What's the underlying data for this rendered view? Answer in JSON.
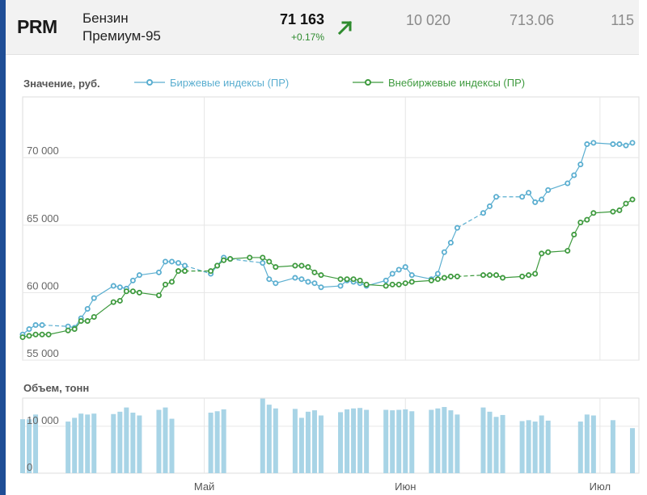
{
  "header": {
    "ticker": "PRM",
    "name_line1": "Бензин",
    "name_line2": "Премиум-95",
    "price": "71 163",
    "change": "+0.17%",
    "trend_icon": "arrow-up-right-icon",
    "value1": "10 020",
    "value2": "713.06",
    "value3": "115"
  },
  "colors": {
    "accent": "#1f4e96",
    "exchange": "#5aaed0",
    "otc": "#3e9a3e",
    "volume": "#a8d4e6",
    "up": "#2e8b2e"
  },
  "chart_data": [
    {
      "type": "line",
      "ylabel": "Значение, руб.",
      "ylim": [
        55000,
        74500
      ],
      "yticks": [
        55000,
        60000,
        65000,
        70000
      ],
      "ytick_labels": [
        "55 000",
        "60 000",
        "65 000",
        "70 000"
      ],
      "xlim": [
        "2023-04-03",
        "2023-07-07"
      ],
      "xticks": [
        "2023-05-01",
        "2023-06-01",
        "2023-07-01"
      ],
      "xtick_labels": [
        "Май",
        "Июн",
        "Июл"
      ],
      "grid": true,
      "legend_position": "top",
      "series": [
        {
          "name": "Биржевые индексы (ПР)",
          "x": [
            "2023-04-03",
            "2023-04-04",
            "2023-04-05",
            "2023-04-06",
            "2023-04-10",
            "2023-04-11",
            "2023-04-12",
            "2023-04-13",
            "2023-04-14",
            "2023-04-17",
            "2023-04-18",
            "2023-04-19",
            "2023-04-20",
            "2023-04-21",
            "2023-04-24",
            "2023-04-25",
            "2023-04-26",
            "2023-04-27",
            "2023-04-28",
            "2023-05-02",
            "2023-05-03",
            "2023-05-04",
            "2023-05-05",
            "2023-05-10",
            "2023-05-11",
            "2023-05-12",
            "2023-05-15",
            "2023-05-16",
            "2023-05-17",
            "2023-05-18",
            "2023-05-19",
            "2023-05-22",
            "2023-05-23",
            "2023-05-24",
            "2023-05-25",
            "2023-05-26",
            "2023-05-29",
            "2023-05-30",
            "2023-05-31",
            "2023-06-01",
            "2023-06-02",
            "2023-06-05",
            "2023-06-06",
            "2023-06-07",
            "2023-06-08",
            "2023-06-09",
            "2023-06-13",
            "2023-06-14",
            "2023-06-15",
            "2023-06-19",
            "2023-06-20",
            "2023-06-21",
            "2023-06-22",
            "2023-06-23",
            "2023-06-26",
            "2023-06-27",
            "2023-06-28",
            "2023-06-29",
            "2023-06-30",
            "2023-07-03",
            "2023-07-04",
            "2023-07-05",
            "2023-07-06"
          ],
          "values": [
            56900,
            57300,
            57600,
            57600,
            57500,
            57400,
            58100,
            58800,
            59600,
            60500,
            60400,
            60300,
            60900,
            61300,
            61500,
            62300,
            62300,
            62200,
            62000,
            61400,
            62000,
            62600,
            62500,
            62200,
            61000,
            60700,
            61100,
            61000,
            60800,
            60700,
            60400,
            60500,
            60900,
            60800,
            60700,
            60500,
            60900,
            61400,
            61700,
            61900,
            61300,
            61000,
            61400,
            63000,
            63700,
            64800,
            65900,
            66400,
            67100,
            67100,
            67400,
            66700,
            66900,
            67600,
            68100,
            68700,
            69500,
            71000,
            71100,
            71000,
            71000,
            70900,
            71100
          ]
        },
        {
          "name": "Внебиржевые индексы (ПР)",
          "x": [
            "2023-04-03",
            "2023-04-04",
            "2023-04-05",
            "2023-04-06",
            "2023-04-07",
            "2023-04-10",
            "2023-04-11",
            "2023-04-12",
            "2023-04-13",
            "2023-04-14",
            "2023-04-17",
            "2023-04-18",
            "2023-04-19",
            "2023-04-20",
            "2023-04-21",
            "2023-04-24",
            "2023-04-25",
            "2023-04-26",
            "2023-04-27",
            "2023-04-28",
            "2023-05-02",
            "2023-05-03",
            "2023-05-04",
            "2023-05-05",
            "2023-05-08",
            "2023-05-10",
            "2023-05-11",
            "2023-05-12",
            "2023-05-15",
            "2023-05-16",
            "2023-05-17",
            "2023-05-18",
            "2023-05-19",
            "2023-05-22",
            "2023-05-23",
            "2023-05-24",
            "2023-05-25",
            "2023-05-26",
            "2023-05-29",
            "2023-05-30",
            "2023-05-31",
            "2023-06-01",
            "2023-06-02",
            "2023-06-05",
            "2023-06-06",
            "2023-06-07",
            "2023-06-08",
            "2023-06-09",
            "2023-06-13",
            "2023-06-14",
            "2023-06-15",
            "2023-06-16",
            "2023-06-19",
            "2023-06-20",
            "2023-06-21",
            "2023-06-22",
            "2023-06-23",
            "2023-06-26",
            "2023-06-27",
            "2023-06-28",
            "2023-06-29",
            "2023-06-30",
            "2023-07-03",
            "2023-07-04",
            "2023-07-05",
            "2023-07-06"
          ],
          "values": [
            56700,
            56800,
            56900,
            56900,
            56900,
            57200,
            57300,
            57900,
            57900,
            58200,
            59300,
            59400,
            60100,
            60100,
            60000,
            59800,
            60600,
            60800,
            61600,
            61600,
            61600,
            62000,
            62400,
            62500,
            62600,
            62600,
            62300,
            61900,
            62000,
            62000,
            61900,
            61500,
            61300,
            61000,
            61000,
            61000,
            60900,
            60600,
            60500,
            60600,
            60600,
            60700,
            60800,
            60900,
            61000,
            61100,
            61200,
            61200,
            61300,
            61300,
            61300,
            61100,
            61200,
            61300,
            61400,
            62900,
            63000,
            63100,
            64300,
            65200,
            65400,
            65900,
            66000,
            66100,
            66600,
            66900
          ]
        }
      ]
    },
    {
      "type": "bar",
      "ylabel": "Объем, тонн",
      "ylim": [
        0,
        16000
      ],
      "yticks": [
        0,
        10000
      ],
      "ytick_labels": [
        "0",
        "10 000"
      ],
      "xlim": [
        "2023-04-03",
        "2023-07-07"
      ],
      "xticks": [
        "2023-05-01",
        "2023-06-01",
        "2023-07-01"
      ],
      "xtick_labels": [
        "Май",
        "Июн",
        "Июл"
      ],
      "grid": true,
      "series": [
        {
          "name": "Объем",
          "x": [
            "2023-04-03",
            "2023-04-04",
            "2023-04-05",
            "2023-04-10",
            "2023-04-11",
            "2023-04-12",
            "2023-04-13",
            "2023-04-14",
            "2023-04-17",
            "2023-04-18",
            "2023-04-19",
            "2023-04-20",
            "2023-04-21",
            "2023-04-24",
            "2023-04-25",
            "2023-04-26",
            "2023-05-02",
            "2023-05-03",
            "2023-05-04",
            "2023-05-10",
            "2023-05-11",
            "2023-05-12",
            "2023-05-15",
            "2023-05-16",
            "2023-05-17",
            "2023-05-18",
            "2023-05-19",
            "2023-05-22",
            "2023-05-23",
            "2023-05-24",
            "2023-05-25",
            "2023-05-26",
            "2023-05-29",
            "2023-05-30",
            "2023-05-31",
            "2023-06-01",
            "2023-06-02",
            "2023-06-05",
            "2023-06-06",
            "2023-06-07",
            "2023-06-08",
            "2023-06-09",
            "2023-06-13",
            "2023-06-14",
            "2023-06-15",
            "2023-06-16",
            "2023-06-19",
            "2023-06-20",
            "2023-06-21",
            "2023-06-22",
            "2023-06-23",
            "2023-06-28",
            "2023-06-29",
            "2023-06-30",
            "2023-07-03",
            "2023-07-06"
          ],
          "values": [
            11500,
            11500,
            12500,
            11000,
            11800,
            12700,
            12500,
            12700,
            12600,
            13100,
            14000,
            12900,
            12300,
            13500,
            14000,
            11600,
            12900,
            13200,
            13600,
            15900,
            14600,
            13800,
            13700,
            11800,
            13100,
            13400,
            12300,
            13000,
            13600,
            13800,
            13900,
            13500,
            13500,
            13400,
            13500,
            13600,
            13200,
            13500,
            13800,
            14100,
            13400,
            12500,
            14000,
            13100,
            12000,
            12400,
            11100,
            11300,
            11000,
            12300,
            11200,
            11000,
            12500,
            12300,
            11300,
            9600
          ]
        }
      ]
    }
  ]
}
